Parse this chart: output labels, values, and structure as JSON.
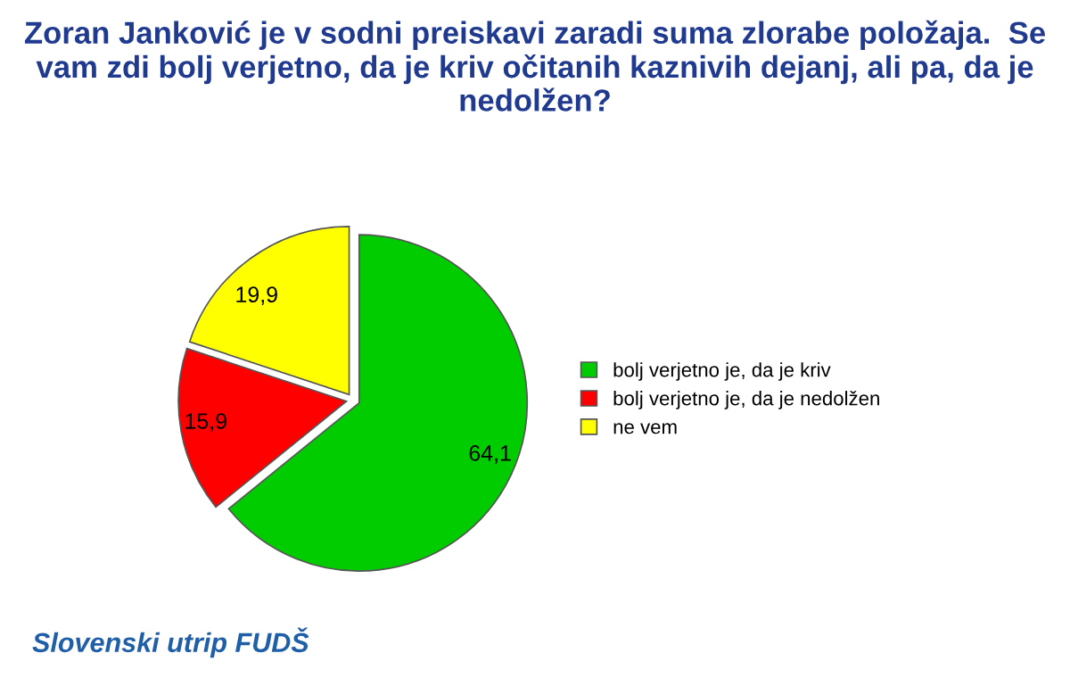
{
  "chart_data": {
    "type": "pie",
    "title": "Zoran Janković je v sodni preiskavi zaradi suma zlorabe položaja.  Se vam zdi bolj verjetno, da je kriv očitanih kaznivih dejanj, ali pa, da je nedolžen?",
    "categories": [
      "bolj verjetno je, da je kriv",
      "bolj verjetno je, da je nedolžen",
      "ne vem"
    ],
    "values": [
      64.1,
      15.9,
      19.9
    ],
    "colors": [
      "#00cc00",
      "#ff0000",
      "#ffff00"
    ],
    "value_labels": [
      "64,1",
      "15,9",
      "19,9"
    ],
    "legend": "right",
    "annotations": [
      "Slovenski utrip FUDŠ"
    ]
  }
}
